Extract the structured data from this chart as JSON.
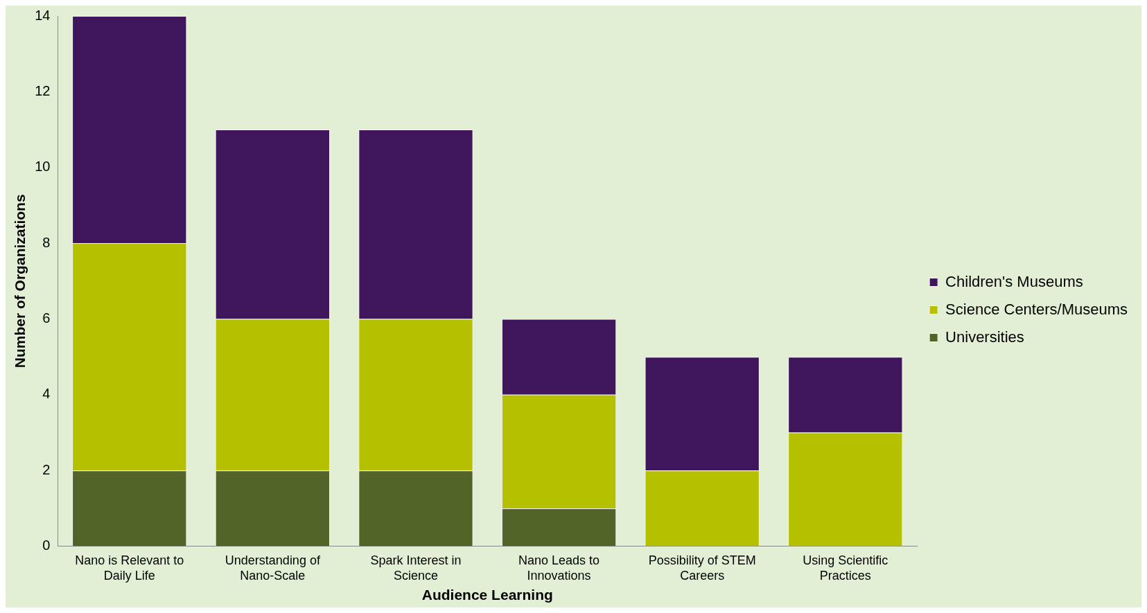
{
  "chart_data": {
    "type": "bar",
    "stacked": true,
    "xlabel": "Audience Learning",
    "ylabel": "Number of Organizations",
    "categories": [
      "Nano is Relevant to Daily Life",
      "Understanding of Nano-Scale",
      "Spark Interest in Science",
      "Nano Leads to Innovations",
      "Possibility of STEM Careers",
      "Using Scientific Practices"
    ],
    "series": [
      {
        "name": "Universities",
        "color": "#536429",
        "values": [
          2,
          2,
          2,
          1,
          0,
          0
        ]
      },
      {
        "name": "Science Centers/Museums",
        "color": "#b5c000",
        "values": [
          6,
          4,
          4,
          3,
          2,
          3
        ]
      },
      {
        "name": "Children's Museums",
        "color": "#3f155b",
        "values": [
          6,
          5,
          5,
          2,
          3,
          2
        ]
      }
    ],
    "ylim": [
      0,
      14
    ],
    "yticks": [
      0,
      2,
      4,
      6,
      8,
      10,
      12,
      14
    ],
    "grid": false,
    "legend": "right"
  }
}
